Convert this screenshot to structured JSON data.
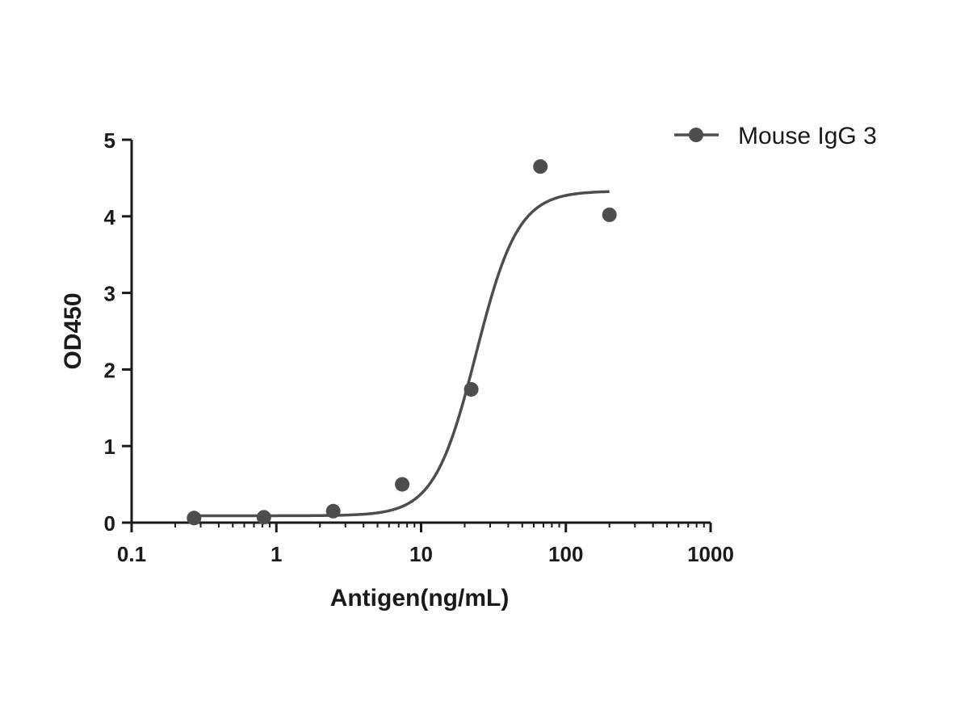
{
  "colors": {
    "series": "#4d4d4d",
    "axis": "#1a1a1a",
    "background": "#ffffff"
  },
  "chart_data": {
    "type": "scatter",
    "title": "",
    "xlabel": "Antigen(ng/mL)",
    "ylabel": "OD450",
    "xscale": "log",
    "xlim": [
      0.1,
      1000
    ],
    "ylim": [
      0,
      5
    ],
    "xticks": [
      0.1,
      1,
      10,
      100,
      1000
    ],
    "xtick_labels": [
      "0.1",
      "1",
      "10",
      "100",
      "1000"
    ],
    "yticks": [
      0,
      1,
      2,
      3,
      4,
      5
    ],
    "ytick_labels": [
      "0",
      "1",
      "2",
      "3",
      "4",
      "5"
    ],
    "grid": false,
    "legend_position": "top-right",
    "series": [
      {
        "name": "Mouse IgG 3",
        "x": [
          0.27,
          0.82,
          2.47,
          7.4,
          22.2,
          66.7,
          200
        ],
        "y": [
          0.06,
          0.07,
          0.15,
          0.5,
          1.74,
          4.65,
          4.02
        ],
        "fit": {
          "model": "4PL",
          "bottom": 0.09,
          "top": 4.33,
          "ec50": 24.0,
          "hill": 3.0,
          "x_range": [
            0.27,
            200
          ]
        }
      }
    ]
  }
}
